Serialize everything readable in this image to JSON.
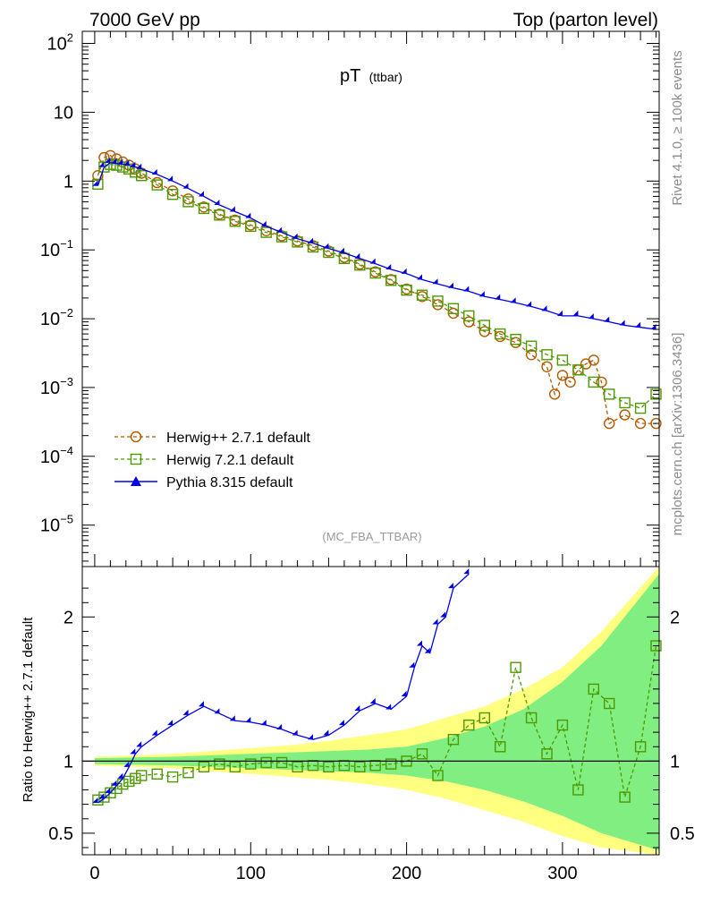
{
  "header": {
    "left_title": "7000 GeV pp",
    "right_title": "Top (parton level)"
  },
  "side_labels": {
    "rivet": "Rivet 4.1.0, ≥ 100k events",
    "mcplots": "mcplots.cern.ch [arXiv:1306.3436]"
  },
  "chart_data": [
    {
      "type": "line",
      "title": "pT",
      "title_sub": "(ttbar)",
      "analysis": "(MC_FBA_TTBAR)",
      "yscale": "log",
      "xlim": [
        -8,
        362
      ],
      "ylim": [
        2.5e-06,
        150
      ],
      "y_ticks": [
        {
          "value": 100,
          "base": "10",
          "exp": "2"
        },
        {
          "value": 10,
          "base": "10",
          "exp": ""
        },
        {
          "value": 1,
          "base": "1",
          "exp": ""
        },
        {
          "value": 0.1,
          "base": "10",
          "exp": "−1"
        },
        {
          "value": 0.01,
          "base": "10",
          "exp": "−2"
        },
        {
          "value": 0.001,
          "base": "10",
          "exp": "−3"
        },
        {
          "value": 0.0001,
          "base": "10",
          "exp": "−4"
        },
        {
          "value": 1e-05,
          "base": "10",
          "exp": "−5"
        }
      ],
      "legend": [
        "Herwig++ 2.7.1 default",
        "Herwig 7.2.1 default",
        "Pythia 8.315 default"
      ],
      "series": [
        {
          "name": "Herwig++ 2.7.1 default",
          "color": "#b35900",
          "marker": "circle",
          "style": "dashed",
          "x": [
            2,
            6,
            10,
            14,
            18,
            22,
            26,
            30,
            40,
            50,
            60,
            70,
            80,
            90,
            100,
            110,
            120,
            130,
            140,
            150,
            160,
            170,
            180,
            190,
            200,
            210,
            220,
            230,
            240,
            250,
            260,
            270,
            280,
            290,
            295,
            300,
            305,
            310,
            315,
            320,
            325,
            330,
            340,
            350,
            360
          ],
          "y": [
            1.2,
            2.2,
            2.35,
            2.1,
            1.9,
            1.7,
            1.5,
            1.3,
            0.95,
            0.72,
            0.55,
            0.42,
            0.33,
            0.27,
            0.23,
            0.19,
            0.16,
            0.135,
            0.115,
            0.096,
            0.078,
            0.062,
            0.048,
            0.037,
            0.027,
            0.021,
            0.016,
            0.012,
            0.009,
            0.0065,
            0.0055,
            0.0045,
            0.003,
            0.002,
            0.0008,
            0.0015,
            0.0012,
            0.0018,
            0.0022,
            0.0025,
            0.0012,
            0.0003,
            0.0004,
            0.0003,
            0.0003
          ]
        },
        {
          "name": "Herwig 7.2.1 default",
          "color": "#4c9900",
          "marker": "square",
          "style": "dashed",
          "x": [
            2,
            6,
            10,
            14,
            18,
            22,
            26,
            30,
            40,
            50,
            60,
            70,
            80,
            90,
            100,
            110,
            120,
            130,
            140,
            150,
            160,
            170,
            180,
            190,
            200,
            210,
            220,
            230,
            240,
            250,
            260,
            270,
            280,
            290,
            300,
            310,
            320,
            330,
            340,
            350,
            360
          ],
          "y": [
            0.9,
            1.6,
            1.75,
            1.7,
            1.6,
            1.5,
            1.35,
            1.2,
            0.88,
            0.64,
            0.5,
            0.4,
            0.32,
            0.26,
            0.22,
            0.18,
            0.155,
            0.13,
            0.11,
            0.092,
            0.075,
            0.06,
            0.046,
            0.036,
            0.026,
            0.022,
            0.018,
            0.014,
            0.011,
            0.008,
            0.006,
            0.005,
            0.004,
            0.003,
            0.0025,
            0.0018,
            0.0012,
            0.0008,
            0.0006,
            0.0005,
            0.0008
          ]
        },
        {
          "name": "Pythia 8.315 default",
          "color": "#0000e6",
          "marker": "triangle",
          "style": "solid",
          "x": [
            2,
            6,
            10,
            14,
            18,
            22,
            26,
            30,
            40,
            50,
            60,
            70,
            80,
            90,
            100,
            110,
            120,
            130,
            140,
            150,
            160,
            170,
            180,
            190,
            200,
            210,
            220,
            230,
            240,
            250,
            260,
            270,
            280,
            290,
            300,
            310,
            320,
            330,
            340,
            350,
            360
          ],
          "y": [
            0.85,
            1.6,
            1.85,
            1.8,
            1.75,
            1.7,
            1.6,
            1.5,
            1.25,
            1.0,
            0.78,
            0.6,
            0.45,
            0.36,
            0.29,
            0.22,
            0.18,
            0.145,
            0.125,
            0.105,
            0.09,
            0.075,
            0.063,
            0.052,
            0.045,
            0.037,
            0.032,
            0.028,
            0.025,
            0.021,
            0.019,
            0.017,
            0.015,
            0.013,
            0.011,
            0.011,
            0.01,
            0.009,
            0.008,
            0.0075,
            0.007
          ]
        }
      ]
    },
    {
      "type": "line",
      "ylabel": "Ratio to Herwig++ 2.7.1 default",
      "xlim": [
        -8,
        362
      ],
      "ylim": [
        0.35,
        2.35
      ],
      "x_ticks": [
        0,
        100,
        200,
        300
      ],
      "x_tick_labels": [
        "0",
        "100",
        "200",
        "300"
      ],
      "y_ticks": [
        0.5,
        1,
        2
      ],
      "y_tick_labels": [
        "0.5",
        "1",
        "2"
      ],
      "reference_line": 1,
      "band_yellow": {
        "x": [
          0,
          25,
          50,
          75,
          100,
          125,
          150,
          175,
          200,
          225,
          250,
          275,
          300,
          325,
          362
        ],
        "lo": [
          0.97,
          0.96,
          0.95,
          0.93,
          0.91,
          0.89,
          0.87,
          0.84,
          0.8,
          0.74,
          0.66,
          0.58,
          0.48,
          0.4,
          0.35
        ],
        "hi": [
          1.03,
          1.04,
          1.05,
          1.07,
          1.09,
          1.11,
          1.14,
          1.18,
          1.22,
          1.3,
          1.38,
          1.5,
          1.65,
          1.9,
          2.35
        ]
      },
      "band_green": {
        "x": [
          0,
          25,
          50,
          75,
          100,
          125,
          150,
          175,
          200,
          225,
          250,
          275,
          300,
          325,
          362
        ],
        "lo": [
          0.98,
          0.975,
          0.97,
          0.96,
          0.95,
          0.94,
          0.93,
          0.92,
          0.9,
          0.86,
          0.8,
          0.72,
          0.62,
          0.5,
          0.38
        ],
        "hi": [
          1.02,
          1.025,
          1.03,
          1.04,
          1.05,
          1.06,
          1.07,
          1.08,
          1.1,
          1.16,
          1.24,
          1.36,
          1.55,
          1.8,
          2.3
        ]
      },
      "series": [
        {
          "name": "Herwig 7.2.1 default",
          "color": "#4c9900",
          "marker": "square",
          "style": "dashed",
          "x": [
            2,
            6,
            10,
            14,
            18,
            22,
            26,
            30,
            40,
            50,
            60,
            70,
            80,
            90,
            100,
            110,
            120,
            130,
            140,
            150,
            160,
            170,
            180,
            190,
            200,
            210,
            220,
            230,
            240,
            250,
            260,
            270,
            280,
            290,
            300,
            310,
            320,
            330,
            340,
            350,
            360
          ],
          "y": [
            0.73,
            0.75,
            0.78,
            0.81,
            0.84,
            0.86,
            0.88,
            0.9,
            0.91,
            0.89,
            0.92,
            0.96,
            0.98,
            0.96,
            0.98,
            0.99,
            0.99,
            0.96,
            0.97,
            0.96,
            0.97,
            0.96,
            0.97,
            0.98,
            1.0,
            1.05,
            0.9,
            1.15,
            1.25,
            1.3,
            1.1,
            1.65,
            1.3,
            1.05,
            1.25,
            0.8,
            1.5,
            1.4,
            0.75,
            1.1,
            1.8
          ]
        },
        {
          "name": "Pythia 8.315 default",
          "color": "#0000e6",
          "marker": "triangle",
          "style": "solid",
          "x": [
            2,
            6,
            10,
            14,
            18,
            22,
            26,
            30,
            40,
            50,
            60,
            70,
            80,
            90,
            100,
            110,
            120,
            130,
            140,
            150,
            160,
            170,
            180,
            190,
            200,
            205,
            210,
            215,
            220,
            225,
            230,
            240
          ],
          "y": [
            0.71,
            0.74,
            0.78,
            0.83,
            0.88,
            0.96,
            1.05,
            1.1,
            1.18,
            1.25,
            1.32,
            1.38,
            1.33,
            1.28,
            1.27,
            1.25,
            1.22,
            1.18,
            1.15,
            1.18,
            1.25,
            1.35,
            1.4,
            1.36,
            1.45,
            1.65,
            1.8,
            1.75,
            1.95,
            2.0,
            2.2,
            2.3
          ]
        }
      ]
    }
  ]
}
